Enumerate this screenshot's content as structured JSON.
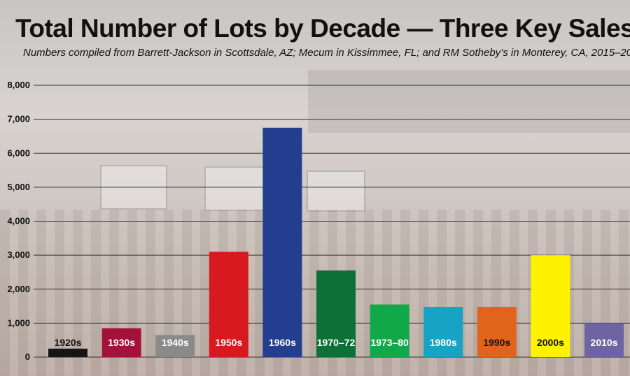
{
  "chart_data": {
    "type": "bar",
    "title": "Total Number of Lots by Decade — Three Key Sales",
    "subtitle": "Numbers compiled from Barrett-Jackson in Scottsdale, AZ; Mecum in Kissimmee, FL; and RM Sotheby’s in Monterey, CA, 2015–20",
    "xlabel": "",
    "ylabel": "",
    "ylim": [
      0,
      8000
    ],
    "yticks": [
      0,
      1000,
      2000,
      3000,
      4000,
      5000,
      6000,
      7000,
      8000
    ],
    "ytick_labels": [
      "0",
      "1,000",
      "2,000",
      "3,000",
      "4,000",
      "5,000",
      "6,000",
      "7,000",
      "8,000"
    ],
    "grid": true,
    "categories": [
      "1920s",
      "1930s",
      "1940s",
      "1950s",
      "1960s",
      "1970–72",
      "1973–80",
      "1980s",
      "1990s",
      "2000s",
      "2010s"
    ],
    "values": [
      250,
      850,
      650,
      3100,
      6750,
      2550,
      1550,
      1480,
      1480,
      3000,
      1000
    ],
    "bar_colors": [
      "#161414",
      "#a3123a",
      "#8a8a8a",
      "#d71920",
      "#233d8f",
      "#0b7137",
      "#11a84a",
      "#17a3c4",
      "#e2641c",
      "#fff200",
      "#6e63a3"
    ],
    "label_colors": [
      "#111111",
      "#ffffff",
      "#ffffff",
      "#ffffff",
      "#ffffff",
      "#ffffff",
      "#ffffff",
      "#ffffff",
      "#111111",
      "#111111",
      "#ffffff"
    ]
  }
}
